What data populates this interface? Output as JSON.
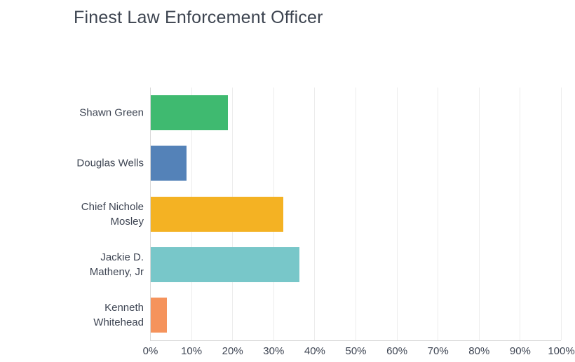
{
  "page": {
    "background": "#ffffff"
  },
  "chart_data": {
    "type": "bar",
    "orientation": "horizontal",
    "title": "Finest Law Enforcement Officer",
    "categories": [
      "Shawn Green",
      "Douglas Wells",
      "Chief Nichole Mosley",
      "Jackie D. Matheny, Jr",
      "Kenneth Whitehead"
    ],
    "values": [
      18.8,
      8.7,
      32.2,
      36.2,
      4.0
    ],
    "unit": "%",
    "bar_colors": [
      "#3fba70",
      "#5482b8",
      "#f4b223",
      "#78c7c9",
      "#f5935c"
    ],
    "xlabel": "",
    "ylabel": "",
    "xlim": [
      0,
      100
    ],
    "x_tick_step": 10,
    "x_tick_labels": [
      "0%",
      "10%",
      "20%",
      "30%",
      "40%",
      "50%",
      "60%",
      "70%",
      "80%",
      "90%",
      "100%"
    ],
    "grid": "vertical-gridlines",
    "legend": "none"
  },
  "colors": {
    "text": "#3e4553",
    "title_text": "#3d4450",
    "gridline": "#ececec",
    "axis_line": "#d8d8d8",
    "background": "#ffffff"
  }
}
